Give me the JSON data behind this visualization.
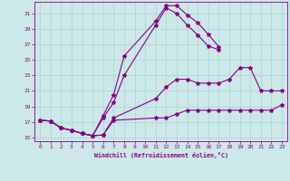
{
  "xlabel": "Windchill (Refroidissement éolien,°C)",
  "bg_color": "#cce8e8",
  "line_color": "#880088",
  "grid_color": "#aad4d4",
  "xlim": [
    -0.5,
    23.5
  ],
  "ylim": [
    14.5,
    32.5
  ],
  "yticks": [
    15,
    17,
    19,
    21,
    23,
    25,
    27,
    29,
    31
  ],
  "xticks": [
    0,
    1,
    2,
    3,
    4,
    5,
    6,
    7,
    8,
    9,
    10,
    11,
    12,
    13,
    14,
    15,
    16,
    17,
    18,
    19,
    20,
    21,
    22,
    23
  ],
  "curves": [
    {
      "x": [
        0,
        1,
        2,
        3,
        4,
        5,
        6,
        7,
        8,
        11,
        12,
        13,
        14,
        15,
        16,
        17
      ],
      "y": [
        17.2,
        17.1,
        16.2,
        15.9,
        15.5,
        15.2,
        17.8,
        20.5,
        25.5,
        30.0,
        32.0,
        32.0,
        30.8,
        29.8,
        28.3,
        26.7
      ],
      "ls": "-"
    },
    {
      "x": [
        0,
        1,
        2,
        3,
        4,
        5,
        6,
        7,
        8,
        11,
        12,
        13,
        14,
        15,
        16,
        17
      ],
      "y": [
        17.2,
        17.1,
        16.2,
        15.9,
        15.5,
        15.2,
        17.5,
        19.5,
        23.0,
        29.5,
        31.7,
        31.0,
        29.5,
        28.2,
        26.8,
        26.3
      ],
      "ls": "-"
    },
    {
      "x": [
        0,
        1,
        2,
        3,
        4,
        5,
        6,
        7,
        11,
        12,
        13,
        14,
        15,
        16,
        17,
        18,
        19,
        20,
        21,
        22,
        23
      ],
      "y": [
        17.2,
        17.1,
        16.2,
        15.9,
        15.5,
        15.2,
        15.3,
        17.5,
        20.0,
        21.5,
        22.5,
        22.5,
        22.0,
        22.0,
        22.0,
        22.5,
        24.0,
        24.0,
        21.0,
        21.0,
        21.0
      ],
      "ls": "-"
    },
    {
      "x": [
        0,
        1,
        2,
        3,
        4,
        5,
        6,
        7,
        11,
        12,
        13,
        14,
        15,
        16,
        17,
        18,
        19,
        20,
        21,
        22,
        23
      ],
      "y": [
        17.2,
        17.1,
        16.2,
        15.9,
        15.5,
        15.2,
        15.3,
        17.2,
        17.5,
        17.5,
        18.0,
        18.5,
        18.5,
        18.5,
        18.5,
        18.5,
        18.5,
        18.5,
        18.5,
        18.5,
        19.2
      ],
      "ls": "-"
    }
  ]
}
